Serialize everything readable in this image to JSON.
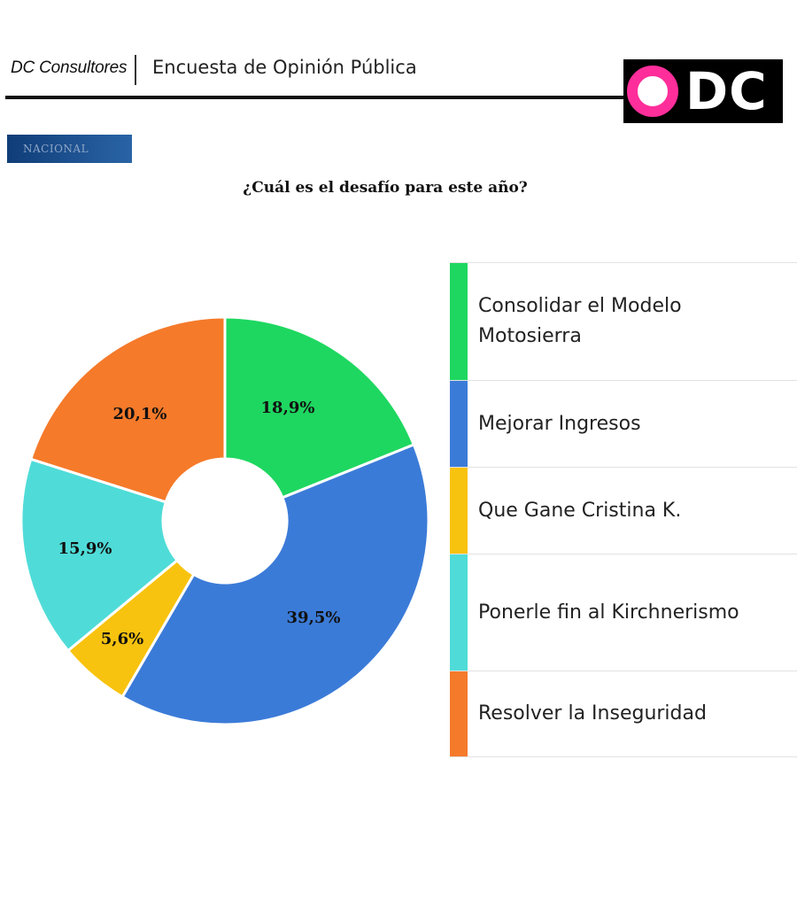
{
  "header": {
    "brand": "DC Consultores",
    "survey_title": "Encuesta de Opinión Pública",
    "logo_text": "DC"
  },
  "badge": {
    "label": "NACIONAL"
  },
  "colors": {
    "green": "#1ed760",
    "blue": "#3b7bd8",
    "yellow": "#f8c30f",
    "cyan": "#4fdcd8",
    "orange": "#f57a2a",
    "logo_pink": "#ff2e9a"
  },
  "chart_data": {
    "type": "pie",
    "title": "¿Cuál es el desafío para este año?",
    "donut": true,
    "categories": [
      "Consolidar el Modelo Motosierra",
      "Mejorar Ingresos",
      "Que Gane Cristina K.",
      "Ponerle fin al Kirchnerismo",
      "Resolver la Inseguridad"
    ],
    "values": [
      18.9,
      39.5,
      5.6,
      15.9,
      20.1
    ],
    "value_labels": [
      "18,9%",
      "39,5%",
      "5,6%",
      "15,9%",
      "20,1%"
    ],
    "colors": [
      "#1ed760",
      "#3b7bd8",
      "#f8c30f",
      "#4fdcd8",
      "#f57a2a"
    ],
    "legend_position": "right"
  }
}
